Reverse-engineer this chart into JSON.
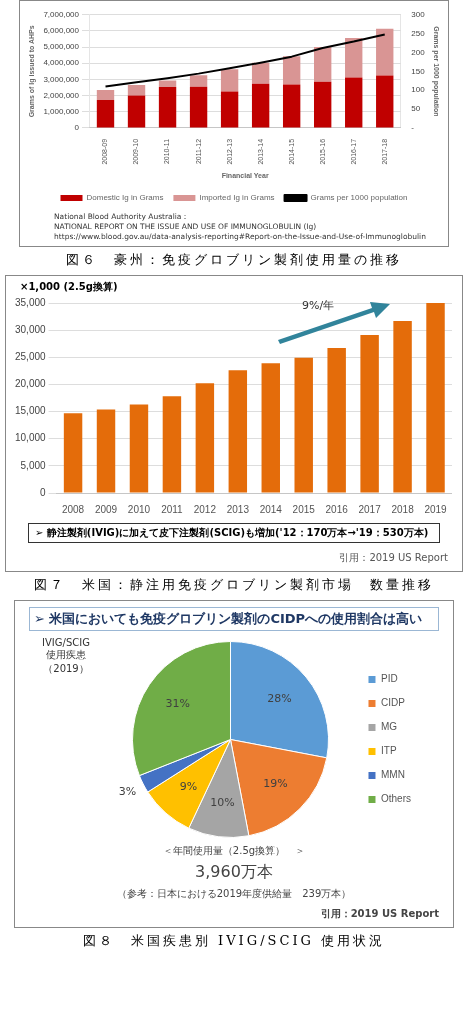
{
  "chart_data": [
    {
      "type": "bar",
      "stacked": true,
      "xlabel": "Financial Year",
      "ylabel": "Grams of Ig issued to AHPs",
      "y2label": "Grams per 1000 population",
      "categories": [
        "2008-09",
        "2009-10",
        "2010-11",
        "2011-12",
        "2012-13",
        "2013-14",
        "2014-15",
        "2015-16",
        "2016-17",
        "2017-18"
      ],
      "series": [
        {
          "name": "Domestic Ig in Grams",
          "color": "#c00000",
          "values": [
            1720000,
            2010000,
            2530000,
            2540000,
            2250000,
            2740000,
            2680000,
            2850000,
            3120000,
            3240000
          ]
        },
        {
          "name": "Imported Ig in Grams",
          "color": "#d99594",
          "values": [
            630000,
            650000,
            410000,
            720000,
            1380000,
            1300000,
            1760000,
            2160000,
            2440000,
            2890000
          ]
        },
        {
          "name": "Grams per 1000 population",
          "type": "line",
          "axis": "y2",
          "color": "#000000",
          "values": [
            110,
            121,
            132,
            144,
            158,
            173,
            189,
            212,
            229,
            248
          ]
        }
      ],
      "ylim": [
        0,
        7000000
      ],
      "yticks": [
        0,
        {
          "value": 1000000,
          "label": "1,000,000"
        },
        {
          "value": 2000000,
          "label": "2,000,000"
        },
        {
          "value": 3000000,
          "label": "3,000,000"
        },
        {
          "value": 4000000,
          "label": "4,000,000"
        },
        {
          "value": 5000000,
          "label": "5,000,000"
        },
        {
          "value": 6000000,
          "label": "6,000,000"
        },
        {
          "value": 7000000,
          "label": "7,000,000"
        }
      ],
      "y2lim": [
        0,
        300
      ],
      "y2ticks": [
        {
          "value": 0,
          "label": "-"
        },
        50,
        100,
        150,
        200,
        250,
        300
      ],
      "grid": "y",
      "legend": "bottom",
      "marker": "none",
      "annotations": [
        "National Blood Authority Australia：",
        "NATIONAL REPORT ON THE ISSUE AND USE OF IMMUNOGLOBULIN (Ig)",
        "https://www.blood.gov.au/data-analysis-reporting#Report-on-the-Issue-and-Use-of-Immunoglobulin",
        "図６　豪州：免疫グロブリン製剤使用量の推移"
      ]
    },
    {
      "type": "bar",
      "ylabel": "×1,000 (2.5g換算)",
      "categories": [
        "2008",
        "2009",
        "2010",
        "2011",
        "2012",
        "2013",
        "2014",
        "2015",
        "2016",
        "2017",
        "2018",
        "2019"
      ],
      "values": [
        14700,
        15400,
        16300,
        17800,
        20200,
        22600,
        23900,
        24900,
        26700,
        29100,
        31700,
        35000
      ],
      "color": "#e46c0a",
      "ylim": [
        0,
        35000
      ],
      "yticks": [
        0,
        {
          "value": 5000,
          "label": "5,000"
        },
        {
          "value": 10000,
          "label": "10,000"
        },
        {
          "value": 15000,
          "label": "15,000"
        },
        {
          "value": 20000,
          "label": "20,000"
        },
        {
          "value": 25000,
          "label": "25,000"
        },
        {
          "value": 30000,
          "label": "30,000"
        },
        {
          "value": 35000,
          "label": "35,000"
        }
      ],
      "grid": "y",
      "annotations": [
        "9%/年",
        "➢ 静注製剤(IVIG)に加えて皮下注製剤(SCIG)も増加('12：170万本→'19：530万本)",
        "引用：2019 US Report",
        "図７　米国：静注用免疫グロブリン製剤市場　数量推移"
      ]
    },
    {
      "type": "pie",
      "title": "➢ 米国においても免疫グロブリン製剤のCIDPへの使用割合は高い",
      "subtitle": "IVIG/SCIG\n使用疾患（2019）",
      "categories": [
        "PID",
        "CIDP",
        "MG",
        "ITP",
        "MMN",
        "Others"
      ],
      "values": [
        28,
        19,
        10,
        9,
        3,
        31
      ],
      "colors": [
        "#5b9bd5",
        "#ed7d31",
        "#a5a5a5",
        "#ffc000",
        "#4472c4",
        "#70ad47"
      ],
      "value_labels": [
        "28%",
        "19%",
        "10%",
        "9%",
        "3%",
        "31%"
      ],
      "legend": "right",
      "annotations": [
        "＜年間使用量（2.5g換算）　＞",
        "3,960万本",
        "（参考：日本における2019年度供給量　239万本）",
        "引用：2019 US Report",
        "図８　米国疾患別 IVIG/SCIG 使用状況"
      ]
    }
  ]
}
